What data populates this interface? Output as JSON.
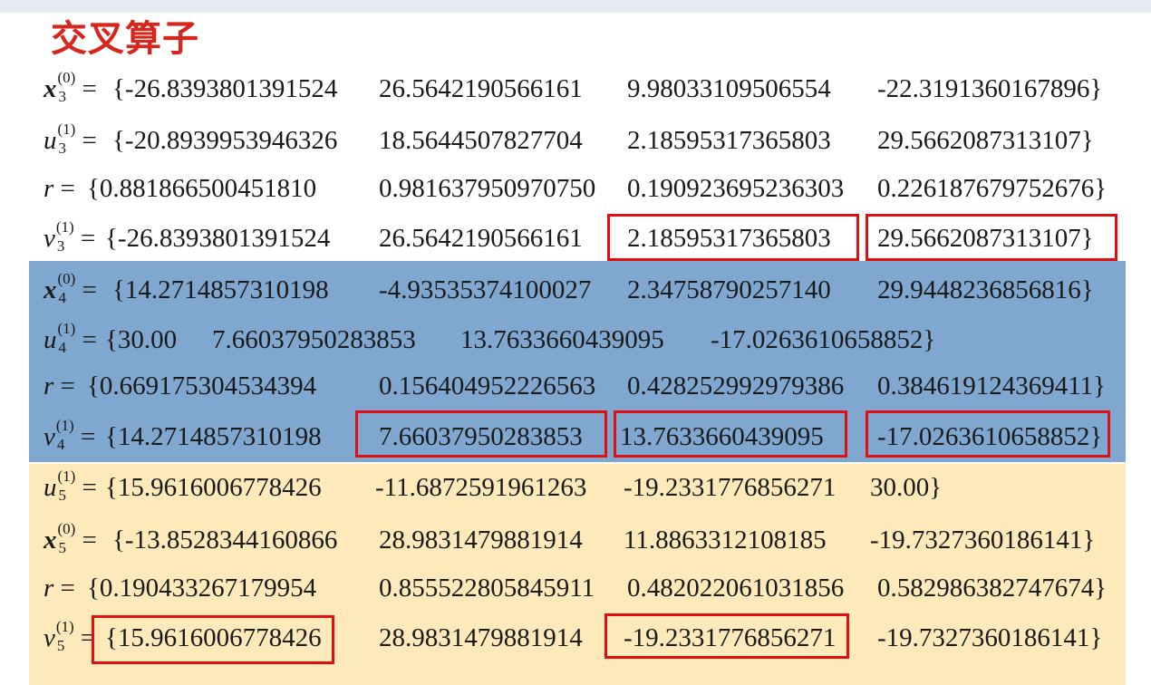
{
  "title": "交叉算子",
  "colors": {
    "title": "#d7261e",
    "blue_panel": "#7fa7cf",
    "yellow_panel": "#fde9b9",
    "highlight_box": "#e01010"
  },
  "rows": [
    {
      "var": "x",
      "sub": "3",
      "sup": "(0)",
      "open": "{-26.8393801391524",
      "c2": "26.5642190566161",
      "c3": "9.98033109506554",
      "c4": "-22.3191360167896}"
    },
    {
      "var": "u",
      "sub": "3",
      "sup": "(1)",
      "open": "{-20.8939953946326",
      "c2": "18.5644507827704",
      "c3": "2.18595317365803",
      "c4": "29.5662087313107}"
    },
    {
      "var": "r",
      "open": "{0.881866500451810",
      "c2": "0.981637950970750",
      "c3": "0.190923695236303",
      "c4": "0.226187679752676}"
    },
    {
      "var": "v",
      "sub": "3",
      "sup": "(1)",
      "open": "{-26.8393801391524",
      "c2": "26.5642190566161",
      "c3": "2.18595317365803",
      "c4": "29.5662087313107}"
    },
    {
      "var": "x",
      "sub": "4",
      "sup": "(0)",
      "open": "{14.2714857310198",
      "c2": "-4.93535374100027",
      "c3": "2.34758790257140",
      "c4": "29.9448236856816}"
    },
    {
      "var": "u",
      "sub": "4",
      "sup": "(1)",
      "open": "{30.00",
      "c2": "7.66037950283853",
      "c3": "13.7633660439095",
      "c4": "-17.0263610658852}"
    },
    {
      "var": "r",
      "open": "{0.669175304534394",
      "c2": "0.156404952226563",
      "c3": "0.428252992979386",
      "c4": "0.384619124369411}"
    },
    {
      "var": "v",
      "sub": "4",
      "sup": "(1)",
      "open": "{14.2714857310198",
      "c2": "7.66037950283853",
      "c3": "13.7633660439095",
      "c4": "-17.0263610658852}"
    },
    {
      "var": "u",
      "sub": "5",
      "sup": "(1)",
      "open": "{15.9616006778426",
      "c2": "-11.6872591961263",
      "c3": "-19.2331776856271",
      "c4": "30.00}"
    },
    {
      "var": "x",
      "sub": "5",
      "sup": "(0)",
      "open": "{-13.8528344160866",
      "c2": "28.9831479881914",
      "c3": "11.8863312108185",
      "c4": "-19.7327360186141}"
    },
    {
      "var": "r",
      "open": "{0.190433267179954",
      "c2": "0.855522805845911",
      "c3": "0.482022061031856",
      "c4": "0.582986382747674}"
    },
    {
      "var": "v",
      "sub": "5",
      "sup": "(1)",
      "open": "{15.9616006778426",
      "c2": "28.9831479881914",
      "c3": "-19.2331776856271",
      "c4": "-19.7327360186141}"
    }
  ],
  "eq": "="
}
